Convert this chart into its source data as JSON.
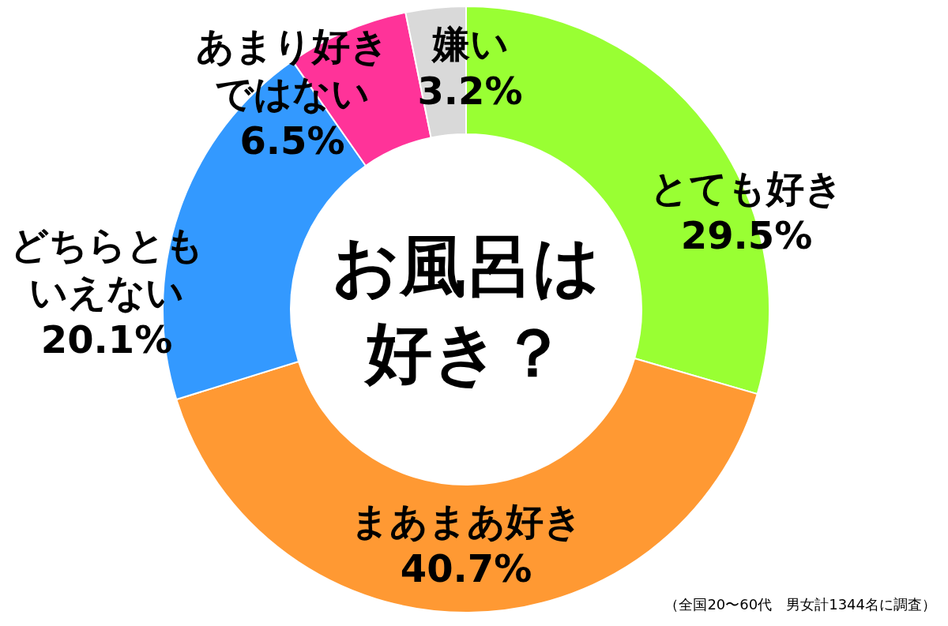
{
  "chart_data": {
    "type": "donut",
    "title": "お風呂は好き？",
    "categories": [
      "とても好き",
      "まあまあ好き",
      "どちらともいえない",
      "あまり好きではない",
      "嫌い"
    ],
    "values": [
      29.5,
      40.7,
      20.1,
      6.5,
      3.2
    ],
    "colors": [
      "#99ff33",
      "#ff9933",
      "#3399ff",
      "#ff3399",
      "#d9d9d9"
    ],
    "value_labels": [
      "29.5%",
      "40.7%",
      "20.1%",
      "6.5%",
      "3.2%"
    ],
    "annotations": [
      "（全国20〜60代　男女計1344名に調査）"
    ]
  }
}
